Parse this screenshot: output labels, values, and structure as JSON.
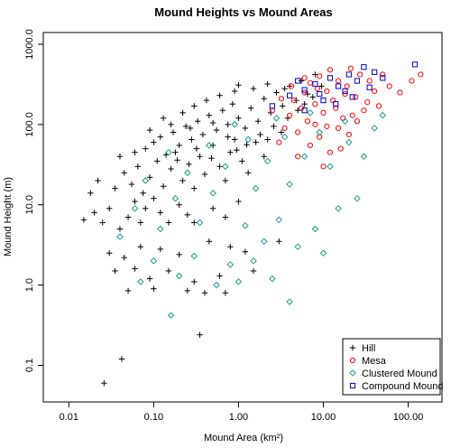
{
  "chart_data": {
    "type": "scatter",
    "title": "Mound Heights vs Mound Areas",
    "xlabel": "Mound Area (km²)",
    "ylabel": "Mound Height (m)",
    "x_scale": "log",
    "y_scale": "log",
    "xlim": [
      0.005,
      250
    ],
    "ylim": [
      0.035,
      1400
    ],
    "x_ticks": [
      0.01,
      0.1,
      1,
      10,
      100
    ],
    "x_tick_labels": [
      "0.01",
      "0.10",
      "1.00",
      "10.00",
      "100.00"
    ],
    "y_ticks": [
      0.1,
      1,
      10,
      100,
      1000
    ],
    "y_tick_labels": [
      "0.1",
      "1.0",
      "10.0",
      "100.0",
      "1000.0"
    ],
    "grid": false,
    "legend_position": "bottom-right",
    "series": [
      {
        "name": "Hill",
        "marker": "plus",
        "color": "#000000",
        "points": [
          [
            0.026,
            0.06
          ],
          [
            0.042,
            0.12
          ],
          [
            0.35,
            0.24
          ],
          [
            0.05,
            0.85
          ],
          [
            0.1,
            0.9
          ],
          [
            0.25,
            0.85
          ],
          [
            0.4,
            0.8
          ],
          [
            0.7,
            0.8
          ],
          [
            0.035,
            1.5
          ],
          [
            0.06,
            1.6
          ],
          [
            0.09,
            1.2
          ],
          [
            0.15,
            1.5
          ],
          [
            0.3,
            1.1
          ],
          [
            0.6,
            1.3
          ],
          [
            1.5,
            1.5
          ],
          [
            0.03,
            2.5
          ],
          [
            0.045,
            2.2
          ],
          [
            0.07,
            3.0
          ],
          [
            0.12,
            2.8
          ],
          [
            0.2,
            2.4
          ],
          [
            0.45,
            3.5
          ],
          [
            0.8,
            3.0
          ],
          [
            1.2,
            2.6
          ],
          [
            3.0,
            3.5
          ],
          [
            0.015,
            6.5
          ],
          [
            0.02,
            8.0
          ],
          [
            0.025,
            6.0
          ],
          [
            0.03,
            9.0
          ],
          [
            0.04,
            5.0
          ],
          [
            0.05,
            7.0
          ],
          [
            0.06,
            11.0
          ],
          [
            0.07,
            6.0
          ],
          [
            0.08,
            9.0
          ],
          [
            0.1,
            12.0
          ],
          [
            0.12,
            8.0
          ],
          [
            0.15,
            6.0
          ],
          [
            0.2,
            10.0
          ],
          [
            0.25,
            7.5
          ],
          [
            0.3,
            6.0
          ],
          [
            0.5,
            9.0
          ],
          [
            0.7,
            7.0
          ],
          [
            1.0,
            11.0
          ],
          [
            0.018,
            14.0
          ],
          [
            0.022,
            20.0
          ],
          [
            0.035,
            16.0
          ],
          [
            0.045,
            25.0
          ],
          [
            0.055,
            18.0
          ],
          [
            0.065,
            30.0
          ],
          [
            0.075,
            14.0
          ],
          [
            0.09,
            22.0
          ],
          [
            0.11,
            35.0
          ],
          [
            0.13,
            17.0
          ],
          [
            0.16,
            28.0
          ],
          [
            0.18,
            45.0
          ],
          [
            0.22,
            20.0
          ],
          [
            0.26,
            32.0
          ],
          [
            0.3,
            16.0
          ],
          [
            0.35,
            40.0
          ],
          [
            0.4,
            24.0
          ],
          [
            0.5,
            55.0
          ],
          [
            0.6,
            30.0
          ],
          [
            0.7,
            20.0
          ],
          [
            0.8,
            45.0
          ],
          [
            0.9,
            65.0
          ],
          [
            1.1,
            35.0
          ],
          [
            1.3,
            25.0
          ],
          [
            1.6,
            60.0
          ],
          [
            2.0,
            40.0
          ],
          [
            0.04,
            40.0
          ],
          [
            0.06,
            45.0
          ],
          [
            0.08,
            50.0
          ],
          [
            0.1,
            60.0
          ],
          [
            0.12,
            70.0
          ],
          [
            0.14,
            42.0
          ],
          [
            0.17,
            80.0
          ],
          [
            0.2,
            55.0
          ],
          [
            0.24,
            95.0
          ],
          [
            0.28,
            65.0
          ],
          [
            0.33,
            110.0
          ],
          [
            0.38,
            75.0
          ],
          [
            0.45,
            130.0
          ],
          [
            0.55,
            85.0
          ],
          [
            0.65,
            150.0
          ],
          [
            0.75,
            100.0
          ],
          [
            0.85,
            180.0
          ],
          [
            1.0,
            120.0
          ],
          [
            1.2,
            90.0
          ],
          [
            1.4,
            160.0
          ],
          [
            1.7,
            110.0
          ],
          [
            2.0,
            210.0
          ],
          [
            2.4,
            140.0
          ],
          [
            2.8,
            250.0
          ],
          [
            3.3,
            170.0
          ],
          [
            4.0,
            300.0
          ],
          [
            4.8,
            200.0
          ],
          [
            5.5,
            350.0
          ],
          [
            6.5,
            240.0
          ],
          [
            8.0,
            420.0
          ],
          [
            9.5,
            300.0
          ],
          [
            1.0,
            310.0
          ],
          [
            2.2,
            320.0
          ],
          [
            3.5,
            280.0
          ],
          [
            0.13,
            120.0
          ],
          [
            0.22,
            140.0
          ],
          [
            0.3,
            170.0
          ],
          [
            0.42,
            200.0
          ],
          [
            0.6,
            230.0
          ],
          [
            0.9,
            260.0
          ],
          [
            1.5,
            280.0
          ],
          [
            0.16,
            100.0
          ],
          [
            0.27,
            90.0
          ],
          [
            0.5,
            105.0
          ],
          [
            0.75,
            70.0
          ],
          [
            1.8,
            75.0
          ],
          [
            2.6,
            95.0
          ],
          [
            3.8,
            120.0
          ],
          [
            5.0,
            150.0
          ],
          [
            6.0,
            180.0
          ],
          [
            7.5,
            220.0
          ],
          [
            0.09,
            85.0
          ],
          [
            0.19,
            36.0
          ],
          [
            0.32,
            50.0
          ],
          [
            0.48,
            38.0
          ],
          [
            0.95,
            48.0
          ],
          [
            1.25,
            56.0
          ],
          [
            2.2,
            65.0
          ],
          [
            3.2,
            80.0
          ]
        ]
      },
      {
        "name": "Mesa",
        "marker": "circle",
        "color": "#ff0000",
        "points": [
          [
            3.0,
            60.0
          ],
          [
            3.5,
            90.0
          ],
          [
            4.0,
            130.0
          ],
          [
            4.5,
            200.0
          ],
          [
            5.0,
            80.0
          ],
          [
            5.5,
            160.0
          ],
          [
            6.0,
            250.0
          ],
          [
            6.5,
            110.0
          ],
          [
            7.0,
            330.0
          ],
          [
            8.0,
            180.0
          ],
          [
            9.0,
            400.0
          ],
          [
            10.0,
            140.0
          ],
          [
            11.0,
            260.0
          ],
          [
            12.0,
            480.0
          ],
          [
            13.0,
            200.0
          ],
          [
            15.0,
            350.0
          ],
          [
            17.0,
            120.0
          ],
          [
            19.0,
            300.0
          ],
          [
            21.0,
            500.0
          ],
          [
            24.0,
            220.0
          ],
          [
            27.0,
            420.0
          ],
          [
            30.0,
            150.0
          ],
          [
            35.0,
            350.0
          ],
          [
            40.0,
            260.0
          ],
          [
            50.0,
            420.0
          ],
          [
            60.0,
            300.0
          ],
          [
            80.0,
            250.0
          ],
          [
            110.0,
            350.0
          ],
          [
            140.0,
            420.0
          ],
          [
            5.0,
            40.0
          ],
          [
            7.0,
            55.0
          ],
          [
            9.0,
            70.0
          ],
          [
            12.0,
            45.0
          ],
          [
            15.0,
            90.0
          ],
          [
            20.0,
            75.0
          ],
          [
            25.0,
            110.0
          ],
          [
            2.5,
            150.0
          ],
          [
            3.2,
            210.0
          ],
          [
            4.2,
            300.0
          ],
          [
            6.0,
            380.0
          ],
          [
            8.5,
            280.0
          ],
          [
            14.0,
            160.0
          ],
          [
            18.0,
            240.0
          ],
          [
            22.0,
            130.0
          ],
          [
            33.0,
            190.0
          ],
          [
            45.0,
            170.0
          ],
          [
            10.0,
            30.0
          ],
          [
            16.0,
            50.0
          ],
          [
            8.0,
            100.0
          ],
          [
            11.0,
            95.0
          ]
        ]
      },
      {
        "name": "Clustered Mound",
        "marker": "diamond",
        "color": "#1a9e8e",
        "points": [
          [
            0.16,
            0.42
          ],
          [
            4.0,
            0.62
          ],
          [
            0.07,
            1.1
          ],
          [
            0.2,
            1.3
          ],
          [
            0.55,
            1.0
          ],
          [
            1.0,
            1.1
          ],
          [
            2.5,
            1.2
          ],
          [
            0.1,
            2.0
          ],
          [
            0.3,
            2.3
          ],
          [
            0.8,
            1.8
          ],
          [
            1.5,
            2.0
          ],
          [
            10.0,
            2.5
          ],
          [
            5.0,
            3.0
          ],
          [
            2.0,
            3.5
          ],
          [
            0.04,
            4.0
          ],
          [
            0.12,
            5.0
          ],
          [
            0.35,
            6.0
          ],
          [
            1.2,
            5.5
          ],
          [
            3.0,
            6.5
          ],
          [
            8.0,
            5.0
          ],
          [
            0.06,
            9.0
          ],
          [
            0.18,
            12.0
          ],
          [
            0.5,
            14.0
          ],
          [
            1.6,
            16.0
          ],
          [
            4.0,
            18.0
          ],
          [
            15.0,
            9.0
          ],
          [
            25.0,
            12.0
          ],
          [
            0.08,
            20.0
          ],
          [
            0.25,
            25.0
          ],
          [
            0.7,
            30.0
          ],
          [
            2.2,
            35.0
          ],
          [
            6.0,
            40.0
          ],
          [
            12.0,
            30.0
          ],
          [
            30.0,
            40.0
          ],
          [
            0.15,
            45.0
          ],
          [
            0.45,
            55.0
          ],
          [
            1.3,
            65.0
          ],
          [
            3.5,
            70.0
          ],
          [
            9.0,
            80.0
          ],
          [
            20.0,
            60.0
          ],
          [
            40.0,
            90.0
          ],
          [
            0.9,
            100.0
          ],
          [
            2.8,
            120.0
          ],
          [
            7.0,
            140.0
          ],
          [
            18.0,
            110.0
          ],
          [
            50.0,
            130.0
          ]
        ]
      },
      {
        "name": "Compound Mound",
        "marker": "square",
        "color": "#0000cc",
        "points": [
          [
            2.5,
            170.0
          ],
          [
            4.0,
            230.0
          ],
          [
            6.0,
            270.0
          ],
          [
            8.0,
            320.0
          ],
          [
            10.0,
            200.0
          ],
          [
            12.0,
            380.0
          ],
          [
            15.0,
            300.0
          ],
          [
            18.0,
            260.0
          ],
          [
            20.0,
            420.0
          ],
          [
            25.0,
            350.0
          ],
          [
            30.0,
            520.0
          ],
          [
            35.0,
            290.0
          ],
          [
            40.0,
            450.0
          ],
          [
            50.0,
            380.0
          ],
          [
            120.0,
            560.0
          ],
          [
            6.0,
            150.0
          ],
          [
            9.0,
            240.0
          ],
          [
            14.0,
            180.0
          ],
          [
            22.0,
            220.0
          ],
          [
            5.0,
            350.0
          ]
        ]
      }
    ]
  }
}
